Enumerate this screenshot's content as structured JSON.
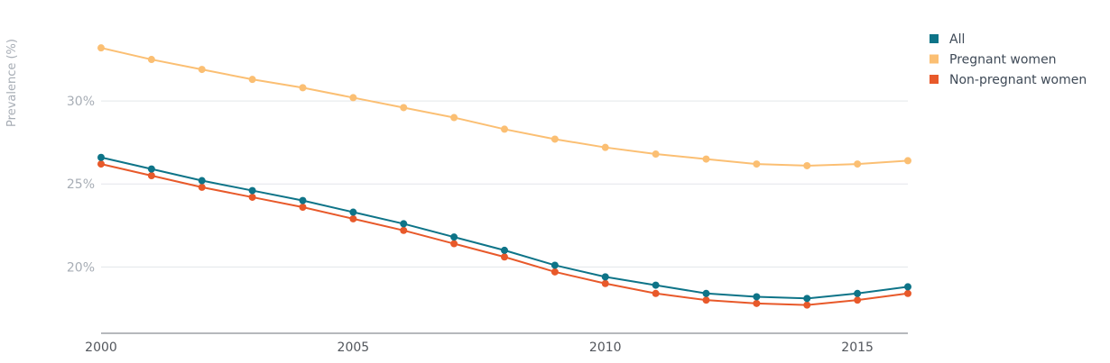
{
  "chart_data": {
    "type": "line",
    "ylabel": "Prevalence (%)",
    "xlim": [
      2000,
      2016
    ],
    "ylim": [
      16.0,
      35.0
    ],
    "x_ticks": [
      2000,
      2005,
      2010,
      2015
    ],
    "x_tick_labels": [
      "2000",
      "2005",
      "2010",
      "2015"
    ],
    "y_ticks": [
      20,
      25,
      30
    ],
    "y_tick_labels": [
      "20%",
      "25%",
      "30%"
    ],
    "grid": true,
    "legend_position": "top-right",
    "x": [
      2000,
      2001,
      2002,
      2003,
      2004,
      2005,
      2006,
      2007,
      2008,
      2009,
      2010,
      2011,
      2012,
      2013,
      2014,
      2015,
      2016
    ],
    "series": [
      {
        "name": "All",
        "color": "#0e7488",
        "values": [
          26.6,
          25.9,
          25.2,
          24.6,
          24.0,
          23.3,
          22.6,
          21.8,
          21.0,
          20.1,
          19.4,
          18.9,
          18.4,
          18.2,
          18.1,
          18.4,
          18.8
        ]
      },
      {
        "name": "Pregnant women",
        "color": "#fbbf73",
        "values": [
          33.2,
          32.5,
          31.9,
          31.3,
          30.8,
          30.2,
          29.6,
          29.0,
          28.3,
          27.7,
          27.2,
          26.8,
          26.5,
          26.2,
          26.1,
          26.2,
          26.4
        ]
      },
      {
        "name": "Non-pregnant women",
        "color": "#e8592a",
        "values": [
          26.2,
          25.5,
          24.8,
          24.2,
          23.6,
          22.9,
          22.2,
          21.4,
          20.6,
          19.7,
          19.0,
          18.4,
          18.0,
          17.8,
          17.7,
          18.0,
          18.4
        ]
      }
    ]
  }
}
